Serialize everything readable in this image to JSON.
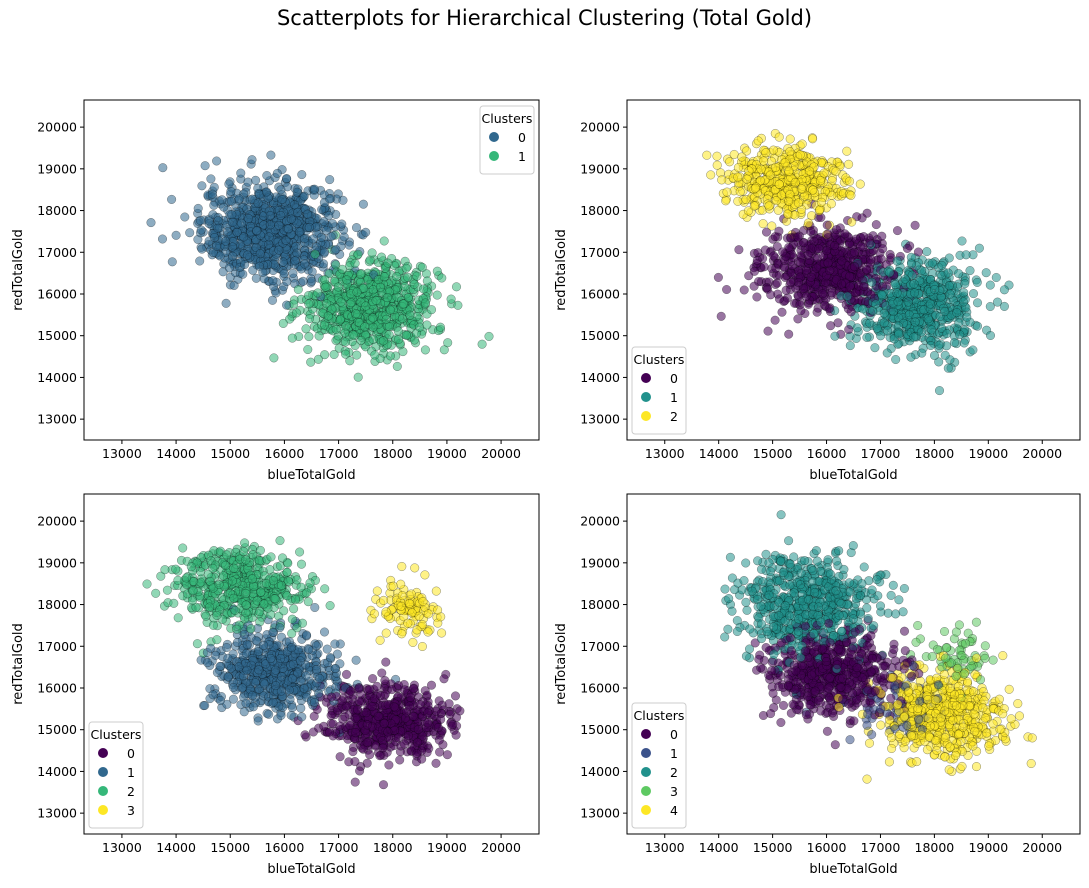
{
  "figure": {
    "suptitle": "Scatterplots for Hierarchical Clustering (Total Gold)"
  },
  "palettes": {
    "k2": [
      "#30688e",
      "#35b779"
    ],
    "k3": [
      "#440154",
      "#21918c",
      "#fde725"
    ],
    "k4": [
      "#440154",
      "#31688e",
      "#35b779",
      "#fde725"
    ],
    "k5": [
      "#440154",
      "#3b528b",
      "#21918c",
      "#5ec962",
      "#fde725"
    ]
  },
  "chart_data": [
    {
      "type": "scatter",
      "title": "",
      "xlabel": "blueTotalGold",
      "ylabel": "redTotalGold",
      "xlim": [
        12300,
        20700
      ],
      "ylim": [
        12500,
        20650
      ],
      "xticks": [
        13000,
        14000,
        15000,
        16000,
        17000,
        18000,
        19000,
        20000
      ],
      "yticks": [
        13000,
        14000,
        15000,
        16000,
        17000,
        18000,
        19000,
        20000
      ],
      "grid": false,
      "marker_alpha": 0.55,
      "legend": {
        "title": "Clusters",
        "position": "top-right",
        "labels": [
          "0",
          "1"
        ]
      },
      "palette": "k2",
      "series": [
        {
          "name": "0",
          "center": [
            15750,
            17500
          ],
          "spread": [
            1150,
            1050
          ],
          "n_points": 900
        },
        {
          "name": "1",
          "center": [
            17600,
            15700
          ],
          "spread": [
            1100,
            950
          ],
          "n_points": 700
        }
      ]
    },
    {
      "type": "scatter",
      "title": "",
      "xlabel": "blueTotalGold",
      "ylabel": "redTotalGold",
      "xlim": [
        12300,
        20700
      ],
      "ylim": [
        12500,
        20650
      ],
      "xticks": [
        13000,
        14000,
        15000,
        16000,
        17000,
        18000,
        19000,
        20000
      ],
      "yticks": [
        13000,
        14000,
        15000,
        16000,
        17000,
        18000,
        19000,
        20000
      ],
      "grid": false,
      "marker_alpha": 0.55,
      "legend": {
        "title": "Clusters",
        "position": "lower-left",
        "labels": [
          "0",
          "1",
          "2"
        ]
      },
      "palette": "k3",
      "series": [
        {
          "name": "0",
          "center": [
            16000,
            16600
          ],
          "spread": [
            1100,
            900
          ],
          "n_points": 650
        },
        {
          "name": "1",
          "center": [
            17700,
            15700
          ],
          "spread": [
            1050,
            1000
          ],
          "n_points": 600
        },
        {
          "name": "2",
          "center": [
            15200,
            18700
          ],
          "spread": [
            1000,
            750
          ],
          "n_points": 450
        }
      ]
    },
    {
      "type": "scatter",
      "title": "",
      "xlabel": "blueTotalGold",
      "ylabel": "redTotalGold",
      "xlim": [
        12300,
        20700
      ],
      "ylim": [
        12500,
        20650
      ],
      "xticks": [
        13000,
        14000,
        15000,
        16000,
        17000,
        18000,
        19000,
        20000
      ],
      "yticks": [
        13000,
        14000,
        15000,
        16000,
        17000,
        18000,
        19000,
        20000
      ],
      "grid": false,
      "marker_alpha": 0.55,
      "legend": {
        "title": "Clusters",
        "position": "lower-left",
        "labels": [
          "0",
          "1",
          "2",
          "3"
        ]
      },
      "palette": "k4",
      "series": [
        {
          "name": "0",
          "center": [
            17900,
            15200
          ],
          "spread": [
            1050,
            800
          ],
          "n_points": 600
        },
        {
          "name": "1",
          "center": [
            15800,
            16400
          ],
          "spread": [
            1000,
            850
          ],
          "n_points": 600
        },
        {
          "name": "2",
          "center": [
            15200,
            18400
          ],
          "spread": [
            1050,
            850
          ],
          "n_points": 500
        },
        {
          "name": "3",
          "center": [
            18300,
            17900
          ],
          "spread": [
            500,
            650
          ],
          "n_points": 110
        }
      ]
    },
    {
      "type": "scatter",
      "title": "",
      "xlabel": "blueTotalGold",
      "ylabel": "redTotalGold",
      "xlim": [
        12300,
        20700
      ],
      "ylim": [
        12500,
        20650
      ],
      "xticks": [
        13000,
        14000,
        15000,
        16000,
        17000,
        18000,
        19000,
        20000
      ],
      "yticks": [
        13000,
        14000,
        15000,
        16000,
        17000,
        18000,
        19000,
        20000
      ],
      "grid": false,
      "marker_alpha": 0.55,
      "legend": {
        "title": "Clusters",
        "position": "lower-left",
        "labels": [
          "0",
          "1",
          "2",
          "3",
          "4"
        ]
      },
      "palette": "k5",
      "series": [
        {
          "name": "0",
          "center": [
            16100,
            16300
          ],
          "spread": [
            1050,
            900
          ],
          "n_points": 600
        },
        {
          "name": "1",
          "center": [
            17200,
            15600
          ],
          "spread": [
            900,
            900
          ],
          "n_points": 60
        },
        {
          "name": "2",
          "center": [
            15600,
            18000
          ],
          "spread": [
            1200,
            1050
          ],
          "n_points": 600
        },
        {
          "name": "3",
          "center": [
            18400,
            16800
          ],
          "spread": [
            600,
            700
          ],
          "n_points": 60
        },
        {
          "name": "4",
          "center": [
            18200,
            15400
          ],
          "spread": [
            1000,
            950
          ],
          "n_points": 550
        }
      ]
    }
  ]
}
